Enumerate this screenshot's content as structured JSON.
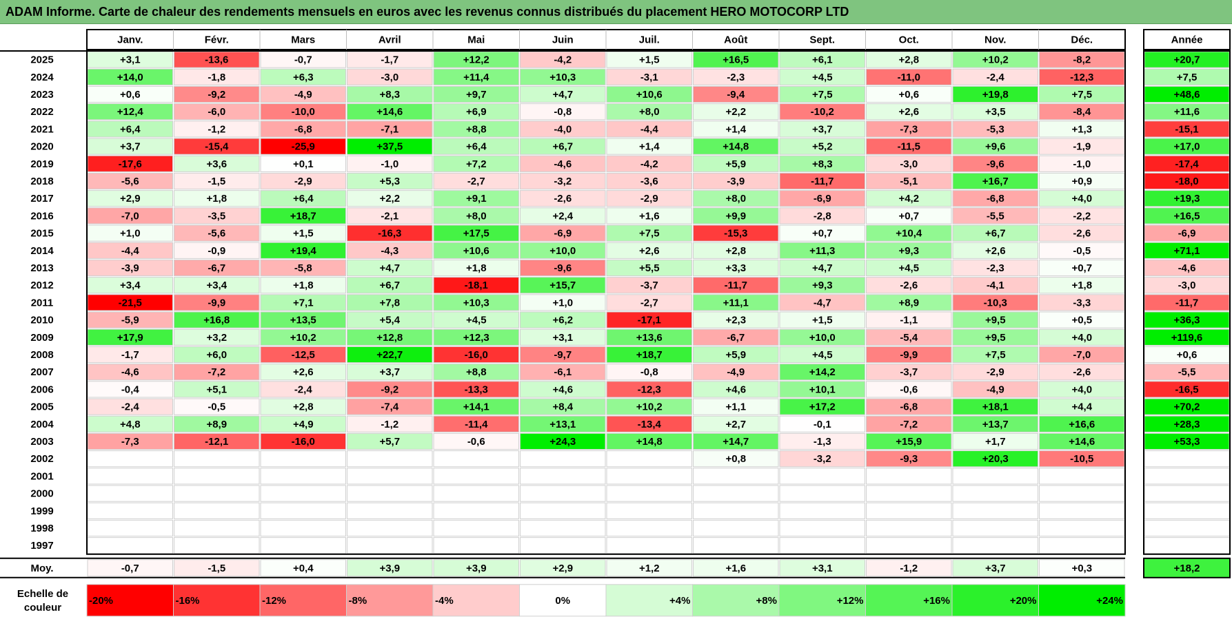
{
  "title": "ADAM Informe. Carte de chaleur des rendements mensuels en euros avec les revenus connus distribués du placement HERO MOTOCORP LTD",
  "chart_data": {
    "type": "heatmap",
    "months": [
      "Janv.",
      "Févr.",
      "Mars",
      "Avril",
      "Mai",
      "Juin",
      "Juil.",
      "Août",
      "Sept.",
      "Oct.",
      "Nov.",
      "Déc."
    ],
    "year_header": "Année",
    "rows": [
      {
        "year": "2025",
        "values": [
          "+3,1",
          "-13,6",
          "-0,7",
          "-1,7",
          "+12,2",
          "-4,2",
          "+1,5",
          "+16,5",
          "+6,1",
          "+2,8",
          "+10,2",
          "-8,2"
        ],
        "annual": "+20,7"
      },
      {
        "year": "2024",
        "values": [
          "+14,0",
          "-1,8",
          "+6,3",
          "-3,0",
          "+11,4",
          "+10,3",
          "-3,1",
          "-2,3",
          "+4,5",
          "-11,0",
          "-2,4",
          "-12,3"
        ],
        "annual": "+7,5"
      },
      {
        "year": "2023",
        "values": [
          "+0,6",
          "-9,2",
          "-4,9",
          "+8,3",
          "+9,7",
          "+4,7",
          "+10,6",
          "-9,4",
          "+7,5",
          "+0,6",
          "+19,8",
          "+7,5"
        ],
        "annual": "+48,6"
      },
      {
        "year": "2022",
        "values": [
          "+12,4",
          "-6,0",
          "-10,0",
          "+14,6",
          "+6,9",
          "-0,8",
          "+8,0",
          "+2,2",
          "-10,2",
          "+2,6",
          "+3,5",
          "-8,4"
        ],
        "annual": "+11,6"
      },
      {
        "year": "2021",
        "values": [
          "+6,4",
          "-1,2",
          "-6,8",
          "-7,1",
          "+8,8",
          "-4,0",
          "-4,4",
          "+1,4",
          "+3,7",
          "-7,3",
          "-5,3",
          "+1,3"
        ],
        "annual": "-15,1"
      },
      {
        "year": "2020",
        "values": [
          "+3,7",
          "-15,4",
          "-25,9",
          "+37,5",
          "+6,4",
          "+6,7",
          "+1,4",
          "+14,8",
          "+5,2",
          "-11,5",
          "+9,6",
          "-1,9"
        ],
        "annual": "+17,0"
      },
      {
        "year": "2019",
        "values": [
          "-17,6",
          "+3,6",
          "+0,1",
          "-1,0",
          "+7,2",
          "-4,6",
          "-4,2",
          "+5,9",
          "+8,3",
          "-3,0",
          "-9,6",
          "-1,0"
        ],
        "annual": "-17,4"
      },
      {
        "year": "2018",
        "values": [
          "-5,6",
          "-1,5",
          "-2,9",
          "+5,3",
          "-2,7",
          "-3,2",
          "-3,6",
          "-3,9",
          "-11,7",
          "-5,1",
          "+16,7",
          "+0,9"
        ],
        "annual": "-18,0"
      },
      {
        "year": "2017",
        "values": [
          "+2,9",
          "+1,8",
          "+6,4",
          "+2,2",
          "+9,1",
          "-2,6",
          "-2,9",
          "+8,0",
          "-6,9",
          "+4,2",
          "-6,8",
          "+4,0"
        ],
        "annual": "+19,3"
      },
      {
        "year": "2016",
        "values": [
          "-7,0",
          "-3,5",
          "+18,7",
          "-2,1",
          "+8,0",
          "+2,4",
          "+1,6",
          "+9,9",
          "-2,8",
          "+0,7",
          "-5,5",
          "-2,2"
        ],
        "annual": "+16,5"
      },
      {
        "year": "2015",
        "values": [
          "+1,0",
          "-5,6",
          "+1,5",
          "-16,3",
          "+17,5",
          "-6,9",
          "+7,5",
          "-15,3",
          "+0,7",
          "+10,4",
          "+6,7",
          "-2,6"
        ],
        "annual": "-6,9"
      },
      {
        "year": "2014",
        "values": [
          "-4,4",
          "-0,9",
          "+19,4",
          "-4,3",
          "+10,6",
          "+10,0",
          "+2,6",
          "+2,8",
          "+11,3",
          "+9,3",
          "+2,6",
          "-0,5"
        ],
        "annual": "+71,1"
      },
      {
        "year": "2013",
        "values": [
          "-3,9",
          "-6,7",
          "-5,8",
          "+4,7",
          "+1,8",
          "-9,6",
          "+5,5",
          "+3,3",
          "+4,7",
          "+4,5",
          "-2,3",
          "+0,7"
        ],
        "annual": "-4,6"
      },
      {
        "year": "2012",
        "values": [
          "+3,4",
          "+3,4",
          "+1,8",
          "+6,7",
          "-18,1",
          "+15,7",
          "-3,7",
          "-11,7",
          "+9,3",
          "-2,6",
          "-4,1",
          "+1,8"
        ],
        "annual": "-3,0"
      },
      {
        "year": "2011",
        "values": [
          "-21,5",
          "-9,9",
          "+7,1",
          "+7,8",
          "+10,3",
          "+1,0",
          "-2,7",
          "+11,1",
          "-4,7",
          "+8,9",
          "-10,3",
          "-3,3"
        ],
        "annual": "-11,7"
      },
      {
        "year": "2010",
        "values": [
          "-5,9",
          "+16,8",
          "+13,5",
          "+5,4",
          "+4,5",
          "+6,2",
          "-17,1",
          "+2,3",
          "+1,5",
          "-1,1",
          "+9,5",
          "+0,5"
        ],
        "annual": "+36,3"
      },
      {
        "year": "2009",
        "values": [
          "+17,9",
          "+3,2",
          "+10,2",
          "+12,8",
          "+12,3",
          "+3,1",
          "+13,6",
          "-6,7",
          "+10,0",
          "-5,4",
          "+9,5",
          "+4,0"
        ],
        "annual": "+119,6"
      },
      {
        "year": "2008",
        "values": [
          "-1,7",
          "+6,0",
          "-12,5",
          "+22,7",
          "-16,0",
          "-9,7",
          "+18,7",
          "+5,9",
          "+4,5",
          "-9,9",
          "+7,5",
          "-7,0"
        ],
        "annual": "+0,6"
      },
      {
        "year": "2007",
        "values": [
          "-4,6",
          "-7,2",
          "+2,6",
          "+3,7",
          "+8,8",
          "-6,1",
          "-0,8",
          "-4,9",
          "+14,2",
          "-3,7",
          "-2,9",
          "-2,6"
        ],
        "annual": "-5,5"
      },
      {
        "year": "2006",
        "values": [
          "-0,4",
          "+5,1",
          "-2,4",
          "-9,2",
          "-13,3",
          "+4,6",
          "-12,3",
          "+4,6",
          "+10,1",
          "-0,6",
          "-4,9",
          "+4,0"
        ],
        "annual": "-16,5"
      },
      {
        "year": "2005",
        "values": [
          "-2,4",
          "-0,5",
          "+2,8",
          "-7,4",
          "+14,1",
          "+8,4",
          "+10,2",
          "+1,1",
          "+17,2",
          "-6,8",
          "+18,1",
          "+4,4"
        ],
        "annual": "+70,2"
      },
      {
        "year": "2004",
        "values": [
          "+4,8",
          "+8,9",
          "+4,9",
          "-1,2",
          "-11,4",
          "+13,1",
          "-13,4",
          "+2,7",
          "-0,1",
          "-7,2",
          "+13,7",
          "+16,6"
        ],
        "annual": "+28,3"
      },
      {
        "year": "2003",
        "values": [
          "-7,3",
          "-12,1",
          "-16,0",
          "+5,7",
          "-0,6",
          "+24,3",
          "+14,8",
          "+14,7",
          "-1,3",
          "+15,9",
          "+1,7",
          "+14,6"
        ],
        "annual": "+53,3"
      },
      {
        "year": "2002",
        "values": [
          "",
          "",
          "",
          "",
          "",
          "",
          "",
          "+0,8",
          "-3,2",
          "-9,3",
          "+20,3",
          "-10,5"
        ],
        "annual": ""
      },
      {
        "year": "2001",
        "values": [
          "",
          "",
          "",
          "",
          "",
          "",
          "",
          "",
          "",
          "",
          "",
          ""
        ],
        "annual": ""
      },
      {
        "year": "2000",
        "values": [
          "",
          "",
          "",
          "",
          "",
          "",
          "",
          "",
          "",
          "",
          "",
          ""
        ],
        "annual": ""
      },
      {
        "year": "1999",
        "values": [
          "",
          "",
          "",
          "",
          "",
          "",
          "",
          "",
          "",
          "",
          "",
          ""
        ],
        "annual": ""
      },
      {
        "year": "1998",
        "values": [
          "",
          "",
          "",
          "",
          "",
          "",
          "",
          "",
          "",
          "",
          "",
          ""
        ],
        "annual": ""
      },
      {
        "year": "1997",
        "values": [
          "",
          "",
          "",
          "",
          "",
          "",
          "",
          "",
          "",
          "",
          "",
          ""
        ],
        "annual": ""
      }
    ],
    "average": {
      "label": "Moy.",
      "values": [
        "-0,7",
        "-1,5",
        "+0,4",
        "+3,9",
        "+3,9",
        "+2,9",
        "+1,2",
        "+1,6",
        "+3,1",
        "-1,2",
        "+3,7",
        "+0,3"
      ],
      "annual": "+18,2"
    },
    "scale": {
      "label_line1": "Echelle de",
      "label_line2": "couleur",
      "values": [
        -20,
        -16,
        -12,
        -8,
        -4,
        0,
        4,
        8,
        12,
        16,
        20,
        24
      ],
      "labels": [
        "-20%",
        "-16%",
        "-12%",
        "-8%",
        "-4%",
        "0%",
        "+4%",
        "+8%",
        "+12%",
        "+16%",
        "+20%",
        "+24%"
      ]
    },
    "colors": {
      "negative": "#ff0000",
      "positive": "#00ee00",
      "neutral": "#ffffff",
      "title_bg": "#7fc47f"
    }
  }
}
